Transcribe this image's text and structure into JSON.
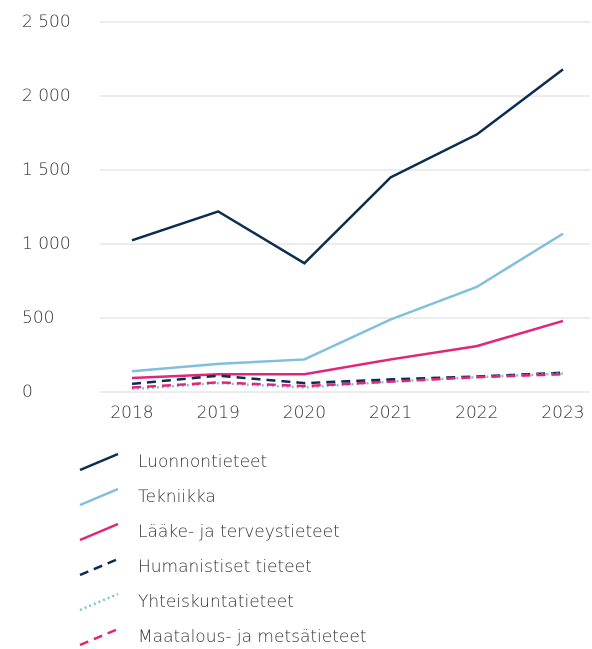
{
  "chart_data": {
    "type": "line",
    "categories": [
      "2018",
      "2019",
      "2020",
      "2021",
      "2022",
      "2023"
    ],
    "series": [
      {
        "name": "Luonnontieteet",
        "color": "#0b2d52",
        "style": "solid",
        "values": [
          1025,
          1220,
          870,
          1450,
          1740,
          2180
        ]
      },
      {
        "name": "Tekniikka",
        "color": "#80c0dc",
        "style": "solid",
        "values": [
          140,
          190,
          220,
          490,
          710,
          1070
        ]
      },
      {
        "name": "Lääke- ja terveystieteet",
        "color": "#e0267b",
        "style": "solid",
        "values": [
          95,
          120,
          120,
          220,
          310,
          480
        ]
      },
      {
        "name": "Humanistiset tieteet",
        "color": "#0b2d52",
        "style": "dashed",
        "values": [
          55,
          110,
          60,
          85,
          105,
          130
        ]
      },
      {
        "name": "Yhteiskuntatieteet",
        "color": "#80c0dc",
        "style": "dotted",
        "values": [
          20,
          60,
          30,
          70,
          100,
          125
        ]
      },
      {
        "name": "Maatalous- ja metsätieteet",
        "color": "#e0267b",
        "style": "dashed",
        "values": [
          30,
          65,
          40,
          70,
          100,
          120
        ]
      }
    ],
    "ylim": [
      0,
      2500
    ],
    "yticks": [
      0,
      500,
      {
        "value": 1000,
        "label": "1 000"
      },
      {
        "value": 1500,
        "label": "1 500"
      },
      {
        "value": 2000,
        "label": "2 000"
      },
      {
        "value": 2500,
        "label": "2 500"
      }
    ],
    "grid": true,
    "legend": "bottom"
  }
}
